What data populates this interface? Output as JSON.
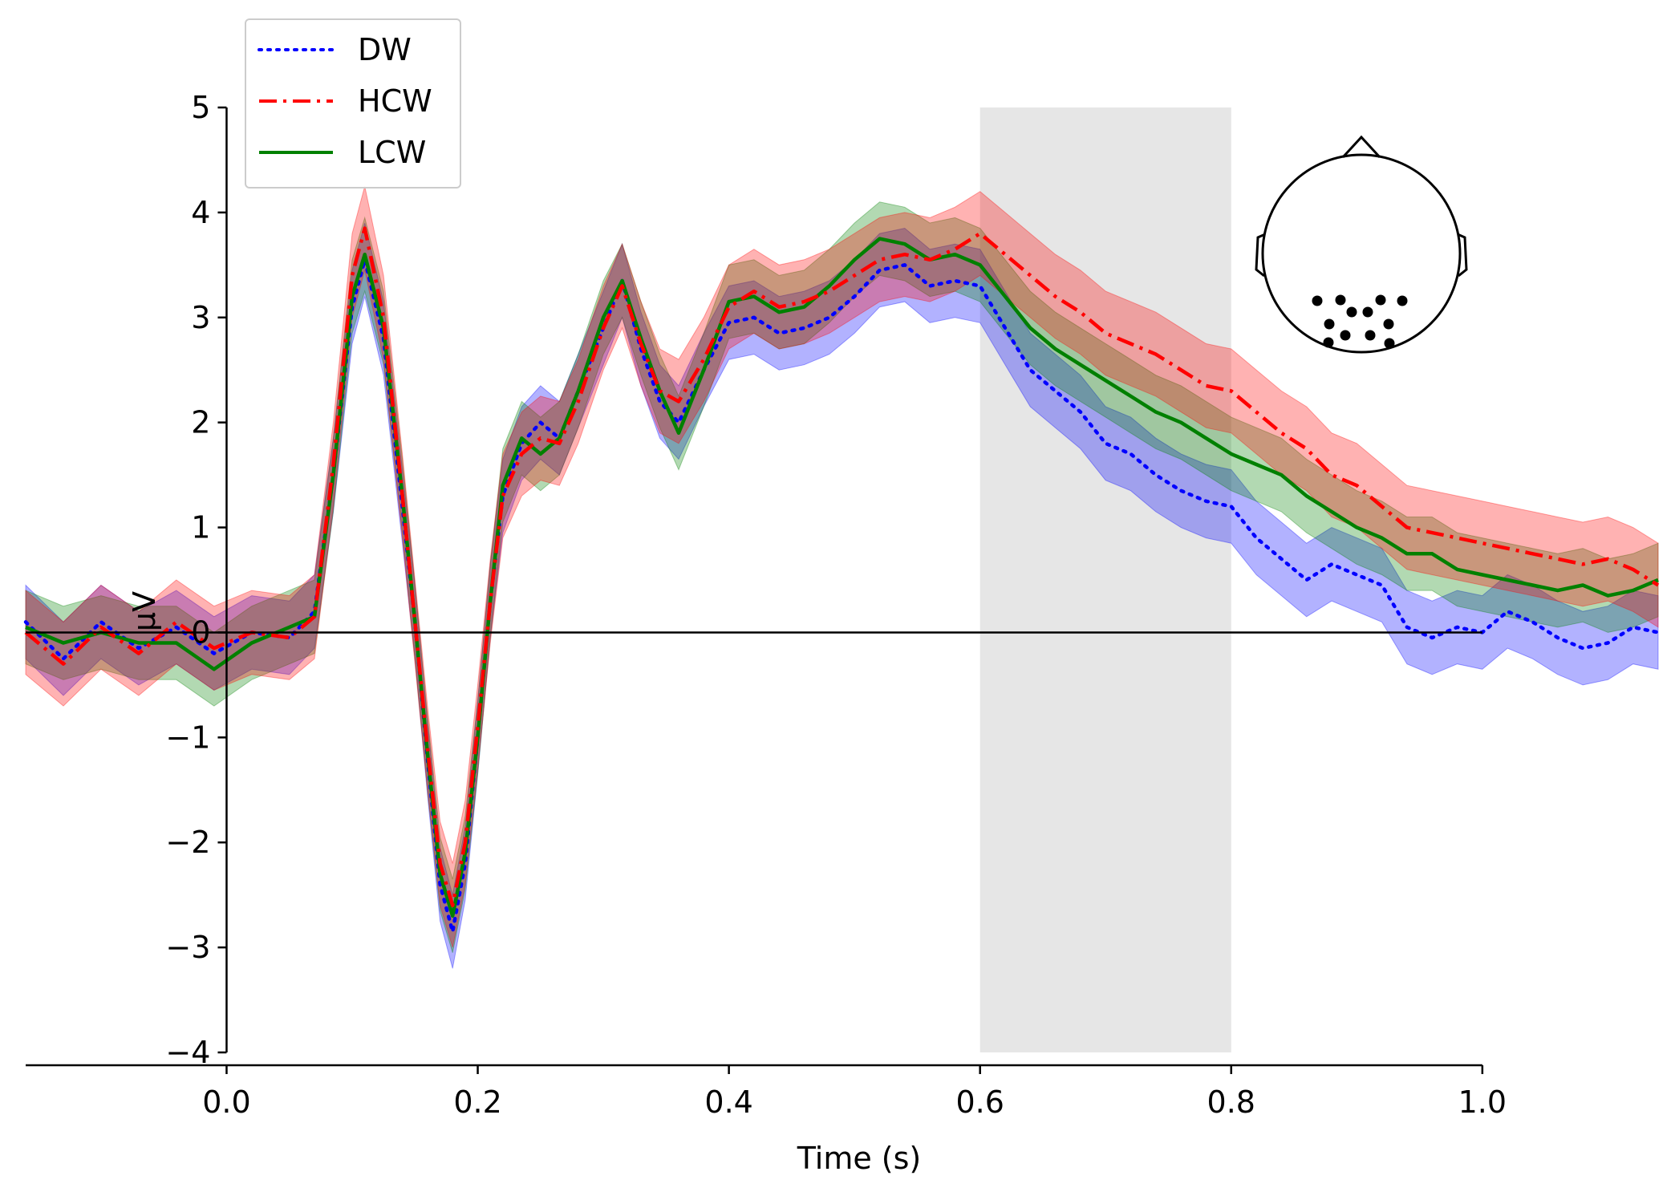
{
  "chart_data": {
    "type": "line",
    "xlabel": "Time (s)",
    "ylabel": "µV",
    "xlim": [
      -0.16,
      1.14
    ],
    "ylim": [
      -4,
      5
    ],
    "x_ticks": [
      0.0,
      0.2,
      0.4,
      0.6,
      0.8,
      1.0
    ],
    "x_tick_labels": [
      "0.0",
      "0.2",
      "0.4",
      "0.6",
      "0.8",
      "1.0"
    ],
    "y_ticks": [
      -4,
      -3,
      -2,
      -1,
      0,
      1,
      2,
      3,
      4,
      5
    ],
    "y_tick_labels": [
      "−4",
      "−3",
      "−2",
      "−1",
      "0",
      "1",
      "2",
      "3",
      "4",
      "5"
    ],
    "highlight_region": [
      0.6,
      0.8
    ],
    "legend_position": "top-left",
    "inset": "head topomap with 11 posterior sensors",
    "series": [
      {
        "name": "DW",
        "color": "#0000ff",
        "style": "dotted",
        "ci": 0.35,
        "x": [
          -0.16,
          -0.13,
          -0.1,
          -0.07,
          -0.04,
          -0.01,
          0.02,
          0.05,
          0.07,
          0.085,
          0.1,
          0.11,
          0.125,
          0.14,
          0.15,
          0.16,
          0.17,
          0.18,
          0.19,
          0.2,
          0.21,
          0.22,
          0.235,
          0.25,
          0.265,
          0.28,
          0.3,
          0.315,
          0.33,
          0.345,
          0.36,
          0.38,
          0.4,
          0.42,
          0.44,
          0.46,
          0.48,
          0.5,
          0.52,
          0.54,
          0.56,
          0.58,
          0.6,
          0.62,
          0.64,
          0.66,
          0.68,
          0.7,
          0.72,
          0.74,
          0.76,
          0.78,
          0.8,
          0.82,
          0.84,
          0.86,
          0.88,
          0.9,
          0.92,
          0.94,
          0.96,
          0.98,
          1.0,
          1.02,
          1.04,
          1.06,
          1.08,
          1.1,
          1.12,
          1.14
        ],
        "values": [
          0.1,
          -0.25,
          0.1,
          -0.15,
          0.05,
          -0.2,
          0.0,
          -0.05,
          0.2,
          1.5,
          3.1,
          3.55,
          2.8,
          1.2,
          0.1,
          -1.2,
          -2.4,
          -2.85,
          -2.2,
          -1.0,
          0.3,
          1.3,
          1.8,
          2.0,
          1.85,
          2.3,
          2.9,
          3.35,
          2.7,
          2.2,
          2.0,
          2.5,
          2.95,
          3.0,
          2.85,
          2.9,
          3.0,
          3.2,
          3.45,
          3.5,
          3.3,
          3.35,
          3.3,
          2.9,
          2.5,
          2.3,
          2.1,
          1.8,
          1.7,
          1.5,
          1.35,
          1.25,
          1.2,
          0.9,
          0.7,
          0.5,
          0.65,
          0.55,
          0.45,
          0.05,
          -0.05,
          0.05,
          0.0,
          0.2,
          0.1,
          -0.05,
          -0.15,
          -0.1,
          0.05,
          0.0
        ]
      },
      {
        "name": "HCW",
        "color": "#ff0000",
        "style": "dashdot",
        "ci": 0.4,
        "x": [
          -0.16,
          -0.13,
          -0.1,
          -0.07,
          -0.04,
          -0.01,
          0.02,
          0.05,
          0.07,
          0.085,
          0.1,
          0.11,
          0.125,
          0.14,
          0.15,
          0.16,
          0.17,
          0.18,
          0.19,
          0.2,
          0.21,
          0.22,
          0.235,
          0.25,
          0.265,
          0.28,
          0.3,
          0.315,
          0.33,
          0.345,
          0.36,
          0.38,
          0.4,
          0.42,
          0.44,
          0.46,
          0.48,
          0.5,
          0.52,
          0.54,
          0.56,
          0.58,
          0.6,
          0.62,
          0.64,
          0.66,
          0.68,
          0.7,
          0.72,
          0.74,
          0.76,
          0.78,
          0.8,
          0.82,
          0.84,
          0.86,
          0.88,
          0.9,
          0.92,
          0.94,
          0.96,
          0.98,
          1.0,
          1.02,
          1.04,
          1.06,
          1.08,
          1.1,
          1.12,
          1.14
        ],
        "values": [
          0.0,
          -0.3,
          0.05,
          -0.2,
          0.1,
          -0.15,
          0.0,
          -0.05,
          0.15,
          1.6,
          3.4,
          3.85,
          3.0,
          1.3,
          0.1,
          -1.1,
          -2.2,
          -2.6,
          -2.0,
          -0.9,
          0.3,
          1.3,
          1.7,
          1.85,
          1.8,
          2.2,
          2.9,
          3.3,
          2.75,
          2.3,
          2.2,
          2.6,
          3.1,
          3.25,
          3.1,
          3.15,
          3.25,
          3.4,
          3.55,
          3.6,
          3.55,
          3.65,
          3.8,
          3.6,
          3.4,
          3.2,
          3.05,
          2.85,
          2.75,
          2.65,
          2.5,
          2.35,
          2.3,
          2.1,
          1.9,
          1.75,
          1.5,
          1.4,
          1.2,
          1.0,
          0.95,
          0.9,
          0.85,
          0.8,
          0.75,
          0.7,
          0.65,
          0.7,
          0.6,
          0.45
        ]
      },
      {
        "name": "LCW",
        "color": "#008000",
        "style": "solid",
        "ci": 0.35,
        "x": [
          -0.16,
          -0.13,
          -0.1,
          -0.07,
          -0.04,
          -0.01,
          0.02,
          0.05,
          0.07,
          0.085,
          0.1,
          0.11,
          0.125,
          0.14,
          0.15,
          0.16,
          0.17,
          0.18,
          0.19,
          0.2,
          0.21,
          0.22,
          0.235,
          0.25,
          0.265,
          0.28,
          0.3,
          0.315,
          0.33,
          0.345,
          0.36,
          0.38,
          0.4,
          0.42,
          0.44,
          0.46,
          0.48,
          0.5,
          0.52,
          0.54,
          0.56,
          0.58,
          0.6,
          0.62,
          0.64,
          0.66,
          0.68,
          0.7,
          0.72,
          0.74,
          0.76,
          0.78,
          0.8,
          0.82,
          0.84,
          0.86,
          0.88,
          0.9,
          0.92,
          0.94,
          0.96,
          0.98,
          1.0,
          1.02,
          1.04,
          1.06,
          1.08,
          1.1,
          1.12,
          1.14
        ],
        "values": [
          0.05,
          -0.1,
          0.0,
          -0.1,
          -0.1,
          -0.35,
          -0.1,
          0.05,
          0.15,
          1.5,
          3.2,
          3.6,
          2.9,
          1.3,
          0.1,
          -1.15,
          -2.3,
          -2.7,
          -2.1,
          -1.0,
          0.3,
          1.4,
          1.85,
          1.7,
          1.85,
          2.3,
          3.0,
          3.35,
          2.8,
          2.3,
          1.9,
          2.5,
          3.15,
          3.2,
          3.05,
          3.1,
          3.3,
          3.55,
          3.75,
          3.7,
          3.55,
          3.6,
          3.5,
          3.2,
          2.9,
          2.7,
          2.55,
          2.4,
          2.25,
          2.1,
          2.0,
          1.85,
          1.7,
          1.6,
          1.5,
          1.3,
          1.15,
          1.0,
          0.9,
          0.75,
          0.75,
          0.6,
          0.55,
          0.5,
          0.45,
          0.4,
          0.45,
          0.35,
          0.4,
          0.5
        ]
      }
    ]
  }
}
